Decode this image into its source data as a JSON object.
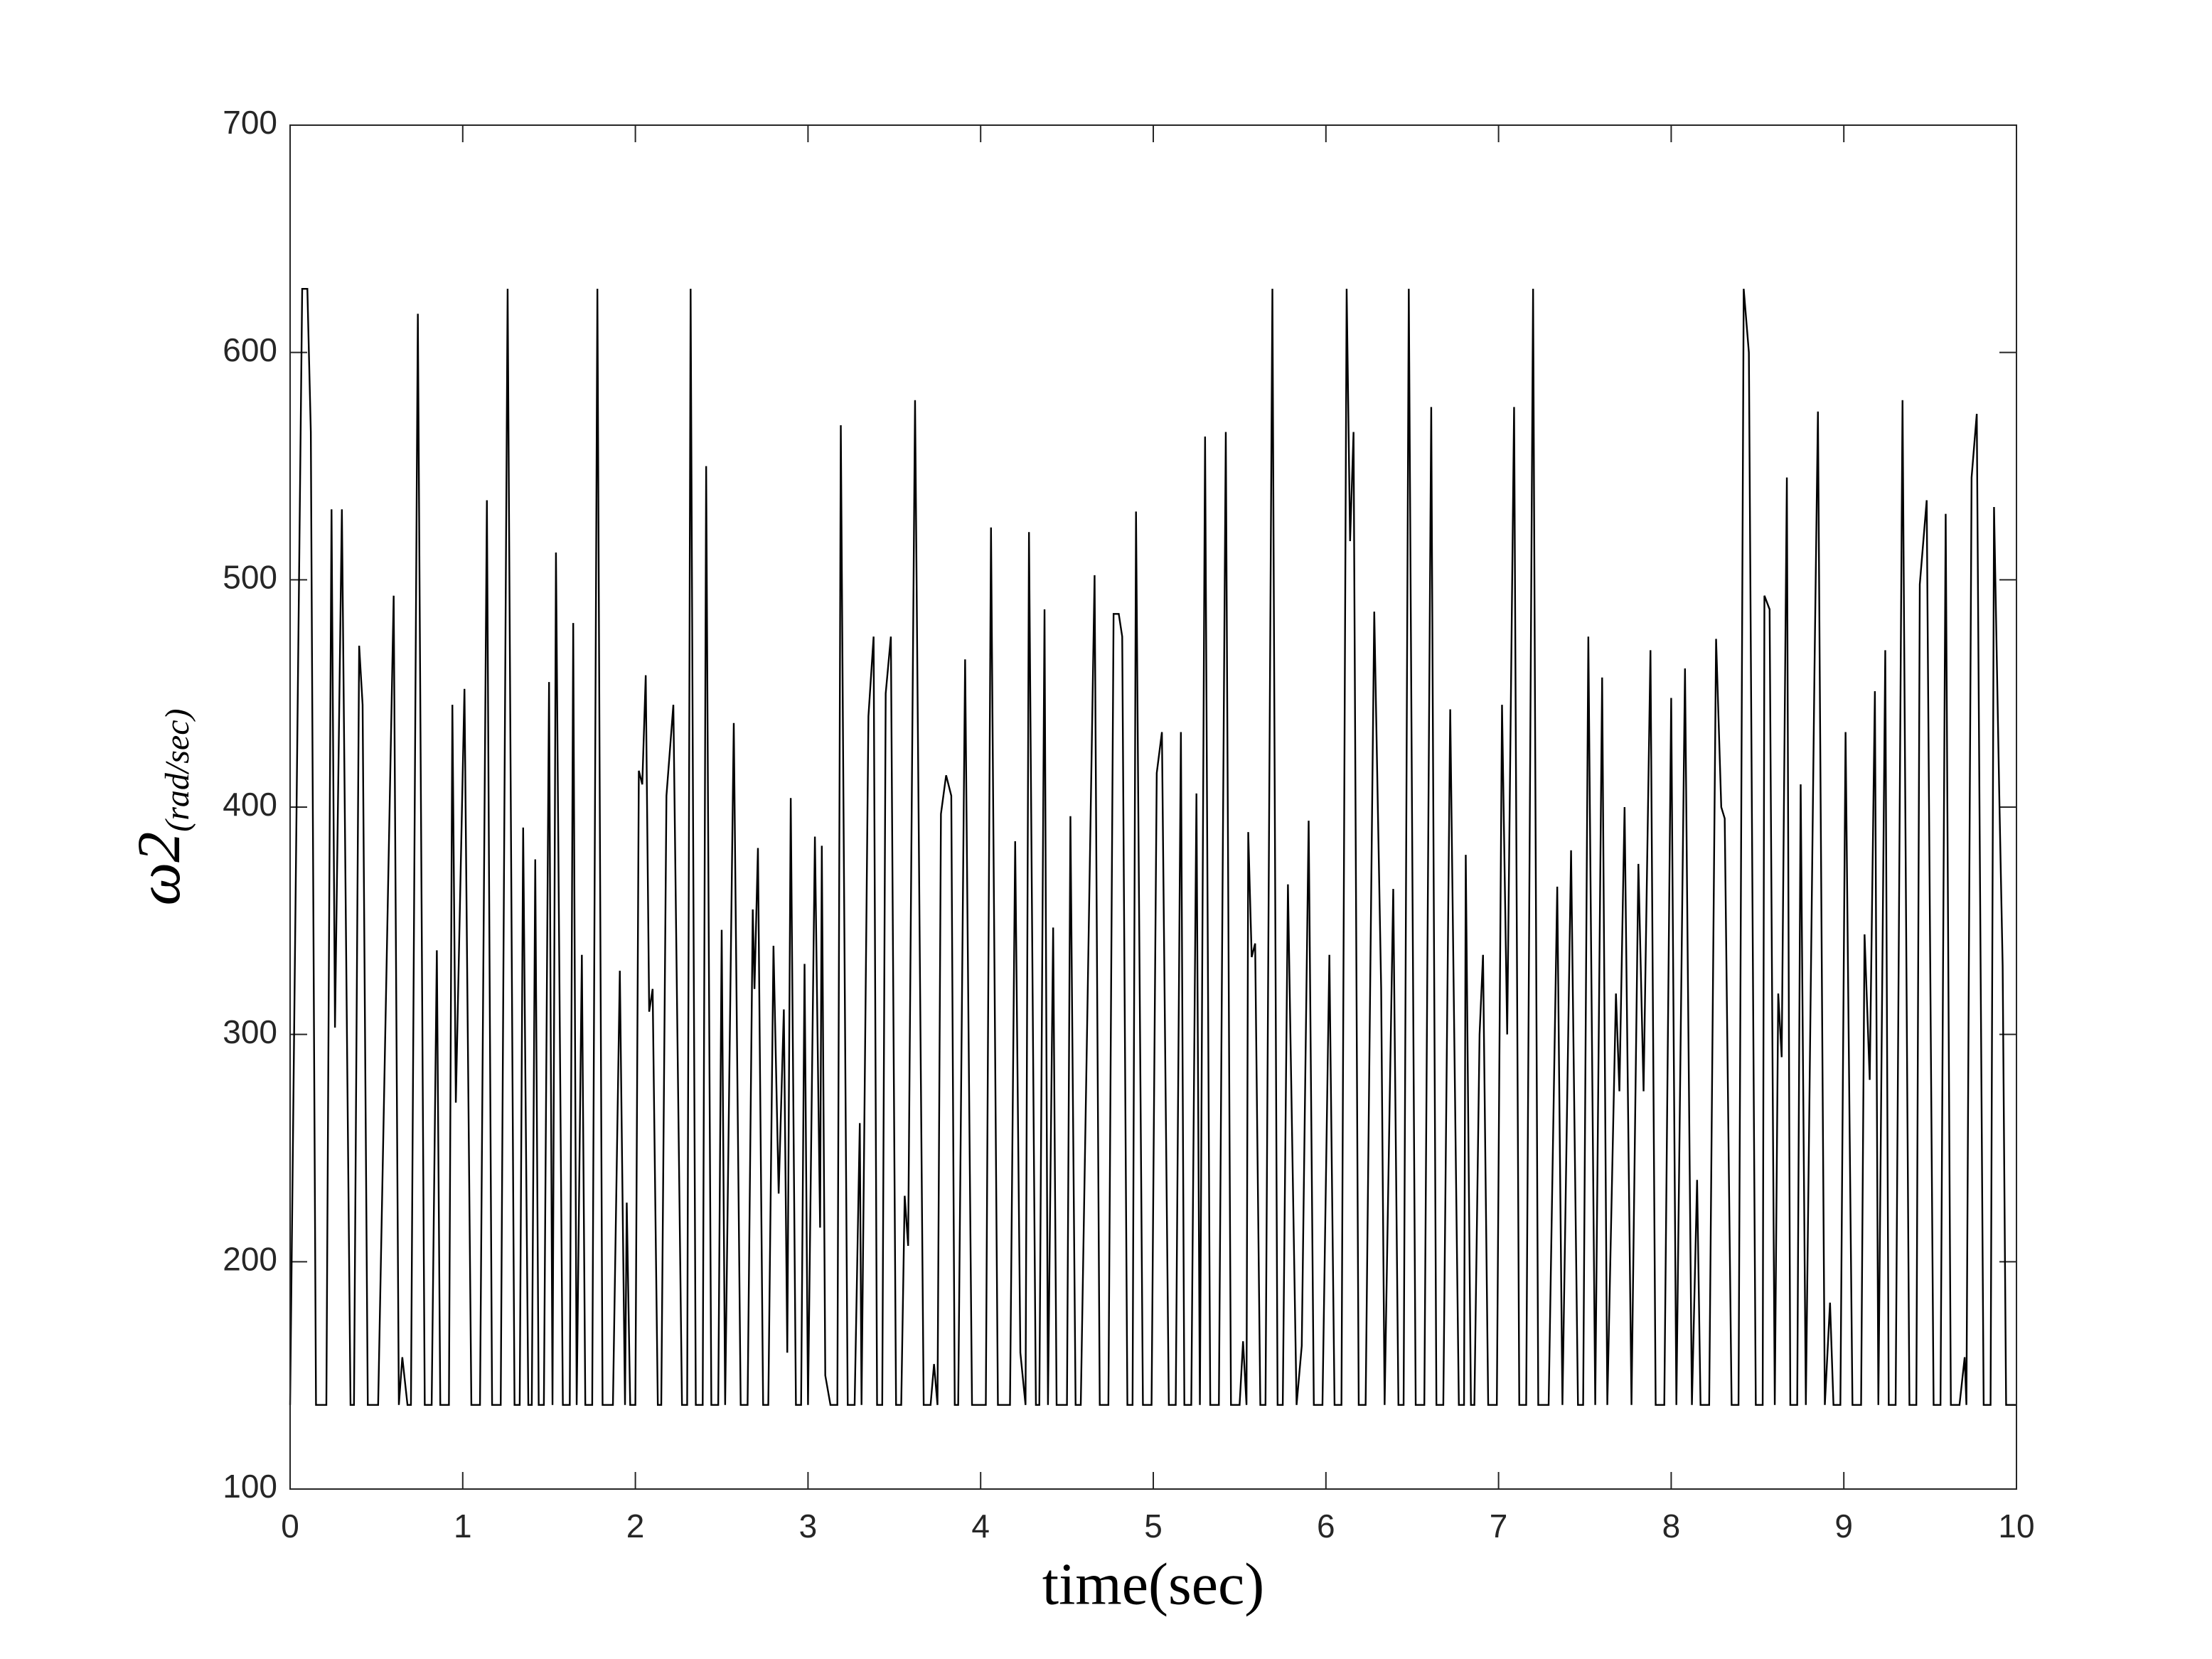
{
  "chart_data": {
    "type": "line",
    "xlabel": "time(sec)",
    "ylabel": "ω2",
    "ylabel_subscript": "(rad/sec)",
    "xlim": [
      0,
      10
    ],
    "xticks": [
      0,
      1,
      2,
      3,
      4,
      5,
      6,
      7,
      8,
      9,
      10
    ],
    "ylim": [
      100,
      700
    ],
    "yticks": [
      100,
      200,
      300,
      400,
      500,
      600,
      700
    ],
    "grid": false,
    "series": [
      {
        "color": "#000000",
        "x": [
          0.0,
          0.07,
          0.1,
          0.12,
          0.15,
          0.21,
          0.24,
          0.26,
          0.3,
          0.35,
          0.37,
          0.4,
          0.42,
          0.45,
          0.51,
          0.6,
          0.63,
          0.65,
          0.68,
          0.7,
          0.74,
          0.78,
          0.82,
          0.85,
          0.87,
          0.92,
          0.94,
          0.96,
          1.01,
          1.05,
          1.1,
          1.14,
          1.17,
          1.22,
          1.26,
          1.3,
          1.33,
          1.35,
          1.38,
          1.4,
          1.42,
          1.44,
          1.47,
          1.5,
          1.52,
          1.54,
          1.58,
          1.62,
          1.64,
          1.66,
          1.69,
          1.71,
          1.75,
          1.78,
          1.81,
          1.87,
          1.91,
          1.94,
          1.95,
          1.97,
          2.0,
          2.02,
          2.04,
          2.06,
          2.08,
          2.1,
          2.13,
          2.15,
          2.18,
          2.22,
          2.27,
          2.3,
          2.32,
          2.35,
          2.39,
          2.41,
          2.44,
          2.48,
          2.5,
          2.52,
          2.57,
          2.61,
          2.65,
          2.68,
          2.69,
          2.71,
          2.74,
          2.77,
          2.8,
          2.83,
          2.86,
          2.88,
          2.9,
          2.93,
          2.96,
          2.98,
          3.0,
          3.04,
          3.07,
          3.08,
          3.1,
          3.13,
          3.17,
          3.19,
          3.23,
          3.27,
          3.3,
          3.31,
          3.35,
          3.38,
          3.4,
          3.43,
          3.45,
          3.48,
          3.51,
          3.54,
          3.56,
          3.58,
          3.62,
          3.67,
          3.71,
          3.73,
          3.75,
          3.77,
          3.8,
          3.83,
          3.85,
          3.87,
          3.91,
          3.95,
          4.03,
          4.06,
          4.1,
          4.17,
          4.2,
          4.23,
          4.26,
          4.28,
          4.32,
          4.34,
          4.37,
          4.39,
          4.42,
          4.44,
          4.5,
          4.52,
          4.55,
          4.58,
          4.62,
          4.66,
          4.69,
          4.74,
          4.77,
          4.8,
          4.82,
          4.85,
          4.88,
          4.9,
          4.94,
          4.99,
          5.02,
          5.05,
          5.09,
          5.13,
          5.16,
          5.18,
          5.22,
          5.25,
          5.27,
          5.3,
          5.33,
          5.38,
          5.42,
          5.45,
          5.5,
          5.52,
          5.54,
          5.55,
          5.57,
          5.59,
          5.62,
          5.65,
          5.69,
          5.72,
          5.75,
          5.78,
          5.83,
          5.86,
          5.9,
          5.93,
          5.98,
          6.02,
          6.05,
          6.09,
          6.12,
          6.14,
          6.16,
          6.19,
          6.23,
          6.28,
          6.32,
          6.34,
          6.39,
          6.42,
          6.45,
          6.48,
          6.52,
          6.57,
          6.61,
          6.64,
          6.68,
          6.72,
          6.77,
          6.8,
          6.81,
          6.84,
          6.86,
          6.89,
          6.91,
          6.94,
          6.99,
          7.02,
          7.05,
          7.09,
          7.12,
          7.16,
          7.2,
          7.23,
          7.29,
          7.34,
          7.37,
          7.42,
          7.46,
          7.49,
          7.52,
          7.56,
          7.6,
          7.63,
          7.68,
          7.7,
          7.73,
          7.77,
          7.81,
          7.84,
          7.88,
          7.91,
          7.96,
          8.0,
          8.03,
          8.08,
          8.12,
          8.15,
          8.17,
          8.22,
          8.26,
          8.29,
          8.31,
          8.35,
          8.39,
          8.42,
          8.45,
          8.49,
          8.53,
          8.54,
          8.57,
          8.6,
          8.62,
          8.64,
          8.67,
          8.69,
          8.73,
          8.75,
          8.78,
          8.83,
          8.85,
          8.89,
          8.92,
          8.94,
          8.98,
          9.01,
          9.05,
          9.1,
          9.12,
          9.15,
          9.18,
          9.2,
          9.24,
          9.26,
          9.3,
          9.34,
          9.38,
          9.42,
          9.44,
          9.48,
          9.52,
          9.56,
          9.59,
          9.62,
          9.67,
          9.7,
          9.71,
          9.74,
          9.77,
          9.81,
          9.85,
          9.87,
          9.9,
          9.92,
          9.94,
          10.0
        ],
        "values": [
          137,
          628,
          628,
          565,
          137,
          137,
          531,
          303,
          531,
          137,
          137,
          471,
          445,
          137,
          137,
          493,
          137,
          158,
          137,
          137,
          617,
          137,
          137,
          337,
          137,
          137,
          445,
          270,
          452,
          137,
          137,
          535,
          137,
          137,
          628,
          137,
          137,
          391,
          137,
          137,
          377,
          137,
          137,
          455,
          137,
          512,
          137,
          137,
          481,
          137,
          335,
          137,
          137,
          628,
          137,
          137,
          328,
          137,
          226,
          137,
          137,
          416,
          410,
          458,
          310,
          320,
          137,
          137,
          405,
          445,
          137,
          137,
          628,
          137,
          137,
          550,
          137,
          137,
          346,
          137,
          437,
          137,
          137,
          355,
          320,
          382,
          137,
          137,
          339,
          230,
          311,
          160,
          404,
          137,
          137,
          331,
          137,
          387,
          215,
          383,
          150,
          137,
          137,
          568,
          137,
          137,
          261,
          137,
          440,
          475,
          137,
          137,
          450,
          475,
          137,
          137,
          229,
          207,
          579,
          137,
          137,
          155,
          137,
          397,
          414,
          405,
          137,
          137,
          465,
          137,
          137,
          523,
          137,
          137,
          385,
          160,
          137,
          521,
          137,
          137,
          487,
          137,
          347,
          137,
          137,
          396,
          137,
          137,
          318,
          502,
          137,
          137,
          485,
          485,
          475,
          137,
          137,
          530,
          137,
          137,
          415,
          433,
          137,
          137,
          433,
          137,
          137,
          406,
          137,
          563,
          137,
          137,
          565,
          137,
          137,
          165,
          137,
          389,
          334,
          340,
          137,
          137,
          628,
          137,
          137,
          366,
          137,
          163,
          394,
          137,
          137,
          335,
          137,
          137,
          628,
          517,
          565,
          137,
          137,
          486,
          320,
          137,
          364,
          137,
          137,
          628,
          137,
          137,
          576,
          137,
          137,
          443,
          137,
          137,
          379,
          137,
          137,
          300,
          335,
          137,
          137,
          445,
          300,
          576,
          137,
          137,
          628,
          137,
          137,
          365,
          137,
          381,
          137,
          137,
          475,
          137,
          457,
          137,
          318,
          275,
          400,
          137,
          375,
          275,
          469,
          137,
          137,
          448,
          137,
          461,
          137,
          236,
          137,
          137,
          474,
          400,
          395,
          137,
          137,
          628,
          600,
          137,
          137,
          493,
          487,
          137,
          318,
          290,
          545,
          137,
          137,
          410,
          137,
          460,
          574,
          137,
          182,
          137,
          137,
          433,
          137,
          137,
          344,
          280,
          451,
          137,
          469,
          137,
          137,
          579,
          137,
          137,
          498,
          535,
          137,
          137,
          529,
          137,
          137,
          158,
          137,
          545,
          573,
          137,
          137,
          532,
          407,
          330,
          137,
          137
        ]
      }
    ]
  }
}
